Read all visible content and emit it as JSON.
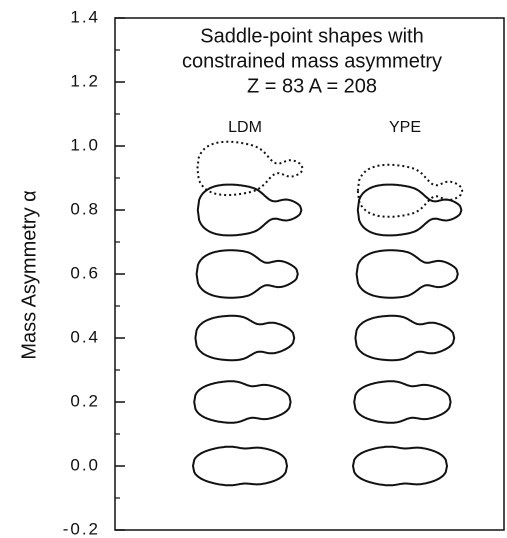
{
  "chart_data": {
    "type": "shapes",
    "title": [
      "Saddle-point shapes with",
      "constrained mass asymmetry",
      "Z = 83   A = 208"
    ],
    "y_label": "Mass Asymmetry α",
    "ylim": [
      -0.2,
      1.4
    ],
    "yticks": [
      -0.2,
      {
        "value": 0,
        "label": "0.0"
      },
      0.2,
      0.4,
      0.6,
      0.8,
      {
        "value": 1,
        "label": "1.0"
      },
      1.2,
      1.4
    ],
    "yminorticks": [
      -0.1,
      0.1,
      0.3,
      0.5,
      0.7,
      0.9,
      1.1,
      1.3
    ],
    "series": [
      {
        "name": "LDM",
        "values": [
          0,
          0.2,
          0.4,
          0.6,
          0.8
        ],
        "dotted_values": [
          0.93
        ]
      },
      {
        "name": "YPE",
        "values": [
          0,
          0.2,
          0.4,
          0.6,
          0.8
        ],
        "dotted_values": [
          0.86
        ]
      }
    ]
  }
}
